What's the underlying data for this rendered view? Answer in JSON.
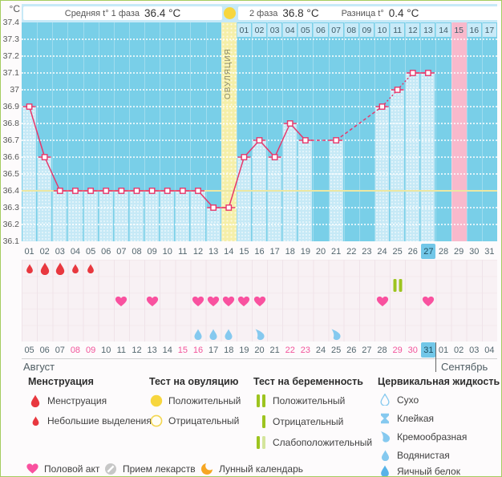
{
  "unit": "°C",
  "header": {
    "phase1_label": "Средняя t° 1 фаза",
    "phase1_value": "36.4 °C",
    "phase2_label": "2 фаза",
    "phase2_value": "36.8 °C",
    "diff_label": "Разница t°",
    "diff_value": "0.4 °C"
  },
  "ovulation_label": "ОВУЛЯЦИЯ",
  "months": {
    "august": "Август",
    "september": "Сентябрь"
  },
  "axis": {
    "yticks": [
      {
        "label": "37.4",
        "value": 37.4
      },
      {
        "label": "37.3",
        "value": 37.3
      },
      {
        "label": "37.2",
        "value": 37.2
      },
      {
        "label": "37.1",
        "value": 37.1
      },
      {
        "label": "37",
        "value": 37.0
      },
      {
        "label": "36.9",
        "value": 36.9
      },
      {
        "label": "36.8",
        "value": 36.8
      },
      {
        "label": "36.7",
        "value": 36.7
      },
      {
        "label": "36.6",
        "value": 36.6
      },
      {
        "label": "36.5",
        "value": 36.5
      },
      {
        "label": "36.4",
        "value": 36.4
      },
      {
        "label": "36.3",
        "value": 36.3
      },
      {
        "label": "36.2",
        "value": 36.2
      },
      {
        "label": "36.1",
        "value": 36.1
      }
    ]
  },
  "cycle_days": [
    "01",
    "02",
    "03",
    "04",
    "05",
    "06",
    "07",
    "08",
    "09",
    "10",
    "11",
    "12",
    "13",
    "14",
    "15",
    "16",
    "17",
    "18",
    "19",
    "20",
    "21",
    "22",
    "23",
    "24",
    "25",
    "26",
    "27",
    "28",
    "29",
    "30",
    "31"
  ],
  "phase2_day_labels": [
    "01",
    "02",
    "03",
    "04",
    "05",
    "06",
    "07",
    "08",
    "09",
    "10",
    "11",
    "12",
    "13",
    "14",
    "15",
    "16",
    "17"
  ],
  "dates": {
    "august": [
      "05",
      "06",
      "07",
      "08",
      "09",
      "10",
      "11",
      "12",
      "13",
      "14",
      "15",
      "16",
      "17",
      "18",
      "19",
      "20",
      "21",
      "22",
      "23",
      "24",
      "25",
      "26",
      "27",
      "28",
      "29",
      "30",
      "31"
    ],
    "september": [
      "01",
      "02",
      "03",
      "04"
    ],
    "weekends_august": [
      "08",
      "09",
      "15",
      "16",
      "22",
      "23",
      "29",
      "30"
    ],
    "today": "31"
  },
  "chart_data": {
    "type": "line",
    "ylabel": "°C",
    "ylim": [
      36.1,
      37.4
    ],
    "x_range_days": [
      1,
      31
    ],
    "grid": true,
    "points": [
      {
        "day": 1,
        "temp": 36.9
      },
      {
        "day": 2,
        "temp": 36.6
      },
      {
        "day": 3,
        "temp": 36.4
      },
      {
        "day": 4,
        "temp": 36.4
      },
      {
        "day": 5,
        "temp": 36.4
      },
      {
        "day": 6,
        "temp": 36.4
      },
      {
        "day": 7,
        "temp": 36.4
      },
      {
        "day": 8,
        "temp": 36.4
      },
      {
        "day": 9,
        "temp": 36.4
      },
      {
        "day": 10,
        "temp": 36.4
      },
      {
        "day": 11,
        "temp": 36.4
      },
      {
        "day": 12,
        "temp": 36.4
      },
      {
        "day": 13,
        "temp": 36.3
      },
      {
        "day": 14,
        "temp": 36.3
      },
      {
        "day": 15,
        "temp": 36.6
      },
      {
        "day": 16,
        "temp": 36.7
      },
      {
        "day": 17,
        "temp": 36.6
      },
      {
        "day": 18,
        "temp": 36.8
      },
      {
        "day": 19,
        "temp": 36.7
      },
      {
        "day": 21,
        "temp": 36.7
      },
      {
        "day": 24,
        "temp": 36.9
      },
      {
        "day": 25,
        "temp": 37.0
      },
      {
        "day": 26,
        "temp": 37.1
      },
      {
        "day": 27,
        "temp": 37.1
      }
    ],
    "dashed_segments": [
      [
        19,
        21
      ],
      [
        21,
        24
      ],
      [
        24,
        25
      ],
      [
        25,
        26
      ]
    ],
    "avg_phase1_line": 36.4,
    "ovulation_day": 14,
    "expected_period_day": 29,
    "today_day": 27
  },
  "symbols": {
    "menstruation": [
      {
        "day": 1,
        "size": "small"
      },
      {
        "day": 2,
        "size": "large"
      },
      {
        "day": 3,
        "size": "large"
      },
      {
        "day": 4,
        "size": "small"
      },
      {
        "day": 5,
        "size": "small"
      }
    ],
    "pregnancy_test": [
      {
        "day": 25,
        "result": "positive"
      }
    ],
    "intercourse_days": [
      7,
      9,
      12,
      13,
      14,
      15,
      16,
      24,
      27
    ],
    "cervical_fluid": [
      {
        "day": 12,
        "type": "watery"
      },
      {
        "day": 13,
        "type": "watery"
      },
      {
        "day": 14,
        "type": "watery"
      },
      {
        "day": 16,
        "type": "creamy"
      },
      {
        "day": 21,
        "type": "creamy"
      }
    ]
  },
  "legend": {
    "sections": [
      {
        "title": "Менструация",
        "items": [
          {
            "icon": "drop-red",
            "label": "Менструация"
          },
          {
            "icon": "drop-red-small",
            "label": "Небольшие выделения"
          }
        ]
      },
      {
        "title": "Тест на овуляцию",
        "items": [
          {
            "icon": "circle-yellow",
            "label": "Положительный"
          },
          {
            "icon": "circle-yellow-outline",
            "label": "Отрицательный"
          }
        ]
      },
      {
        "title": "Тест на беременность",
        "items": [
          {
            "icon": "bars-positive",
            "label": "Положительный"
          },
          {
            "icon": "bar-negative",
            "label": "Отрицательный"
          },
          {
            "icon": "bars-weak",
            "label": "Слабоположительный"
          }
        ]
      },
      {
        "title": "Цервикальная жидкость",
        "items": [
          {
            "icon": "drop-outline-blue",
            "label": "Сухо"
          },
          {
            "icon": "hourglass-blue",
            "label": "Клейкая"
          },
          {
            "icon": "comma-blue",
            "label": "Кремообразная"
          },
          {
            "icon": "drop-blue",
            "label": "Водянистая"
          },
          {
            "icon": "drop-solid-blue",
            "label": "Яичный белок"
          }
        ]
      }
    ],
    "footer_items": [
      {
        "icon": "heart",
        "label": "Половой акт"
      },
      {
        "icon": "meds",
        "label": "Прием лекарств"
      },
      {
        "icon": "moon",
        "label": "Лунный календарь"
      }
    ]
  },
  "colors": {
    "accent_line": "#e7376b",
    "chart_bg": "#79cfe8",
    "bar": "#c6e9f6",
    "ovulation_col": "#f5efa9",
    "period_col": "#f8b9cc",
    "highlight": "#72c7e8",
    "weekend": "#f2549b",
    "green": "#9dc41f",
    "green_light": "#d4e59c",
    "heart": "#f9519f",
    "blue_icon": "#85c9ef",
    "blue_dark_icon": "#57b3e8",
    "red_icon": "#e8383f",
    "moon": "#f6a623",
    "meds_gray": "#c7c7c7",
    "test_circle": "#f7d63e"
  }
}
